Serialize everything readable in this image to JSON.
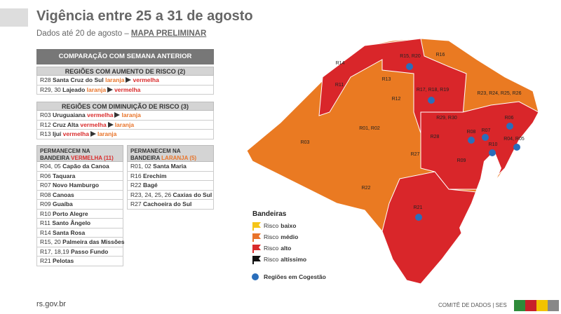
{
  "header": {
    "title": "Vigência entre 25 a 31 de agosto",
    "subtitle": "Dados até 20 de agosto –",
    "subtitle_link": "MAPA PRELIMINAR"
  },
  "comparison": {
    "title": "COMPARAÇÃO COM SEMANA ANTERIOR",
    "increase": {
      "heading": "REGIÕES COM AUMENTO DE RISCO (2)",
      "rows": [
        {
          "code": "R28",
          "name": "Santa Cruz do Sul",
          "from": "laranja",
          "from_color": "#e8742a",
          "to": "vermelha",
          "to_color": "#d92b2b"
        },
        {
          "code": "R29, 30",
          "name": "Lajeado",
          "from": "laranja",
          "from_color": "#e8742a",
          "to": "vermelha",
          "to_color": "#d92b2b"
        }
      ]
    },
    "decrease": {
      "heading": "REGIÕES COM DIMINUIÇÃO DE RISCO (3)",
      "rows": [
        {
          "code": "R03",
          "name": "Uruguaiana",
          "from": "vermelha",
          "from_color": "#d92b2b",
          "to": "laranja",
          "to_color": "#e8742a"
        },
        {
          "code": "R12",
          "name": "Cruz Alta",
          "from": "vermelha",
          "from_color": "#d92b2b",
          "to": "laranja",
          "to_color": "#e8742a"
        },
        {
          "code": "R13",
          "name": "Ijuí",
          "from": "vermelha",
          "from_color": "#d92b2b",
          "to": "laranja",
          "to_color": "#e8742a"
        }
      ]
    }
  },
  "remain_red": {
    "heading": "PERMANECEM NA BANDEIRA",
    "heading_flag": "VERMELHA (11)",
    "color": "#d92b2b",
    "rows": [
      {
        "code": "R04, 05",
        "name": "Capão da Canoa"
      },
      {
        "code": "R06",
        "name": "Taquara"
      },
      {
        "code": "R07",
        "name": "Novo Hamburgo"
      },
      {
        "code": "R08",
        "name": "Canoas"
      },
      {
        "code": "R09",
        "name": "Guaíba"
      },
      {
        "code": "R10",
        "name": "Porto Alegre"
      },
      {
        "code": "R11",
        "name": "Santo Ângelo"
      },
      {
        "code": "R14",
        "name": "Santa Rosa"
      },
      {
        "code": "R15, 20",
        "name": "Palmeira das Missões"
      },
      {
        "code": "R17, 18,19",
        "name": "Passo Fundo"
      },
      {
        "code": "R21",
        "name": "Pelotas"
      }
    ]
  },
  "remain_orange": {
    "heading": "PERMANECEM NA BANDEIRA",
    "heading_flag": "LARANJA (5)",
    "color": "#e8742a",
    "rows": [
      {
        "code": "R01, 02",
        "name": "Santa Maria"
      },
      {
        "code": "R16",
        "name": "Erechim"
      },
      {
        "code": "R22",
        "name": "Bagé"
      },
      {
        "code": "R23, 24, 25, 26",
        "name": "Caxias do Sul"
      },
      {
        "code": "R27",
        "name": "Cachoeira do Sul"
      }
    ]
  },
  "map": {
    "labels": [
      "R15, R20",
      "R16",
      "R14",
      "R13",
      "R11",
      "R17, R18, R19",
      "R23, R24, R25, R26",
      "R12",
      "R01, R02",
      "R29, R30",
      "R06",
      "R08",
      "R07",
      "R28",
      "R03",
      "R10",
      "R04, R05",
      "R27",
      "R09",
      "R22",
      "R21"
    ]
  },
  "legend": {
    "title": "Bandeiras",
    "items": [
      {
        "label": "Risco",
        "level": "baixo",
        "color": "#f5c518"
      },
      {
        "label": "Risco",
        "level": "médio",
        "color": "#e8742a"
      },
      {
        "label": "Risco",
        "level": "alto",
        "color": "#d92b2b"
      },
      {
        "label": "Risco",
        "level": "altíssimo",
        "color": "#111111"
      }
    ],
    "congestion": "Regiões em Cogestão"
  },
  "footer": {
    "site": "rs.gov.br",
    "committee": "COMITÊ DE DADOS",
    "separator": "|",
    "org": "SES"
  }
}
